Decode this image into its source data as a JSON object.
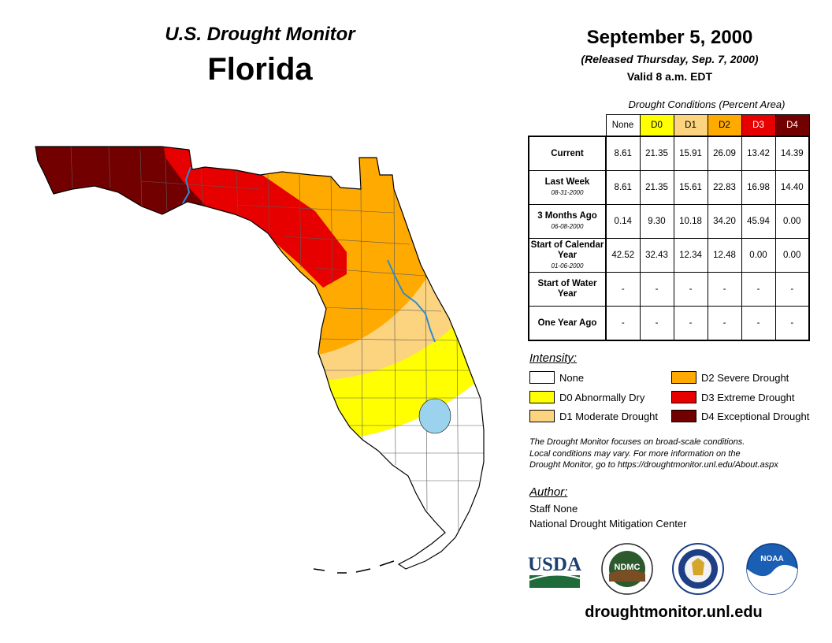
{
  "header": {
    "monitor_title": "U.S. Drought Monitor",
    "state": "Florida",
    "date": "September 5, 2000",
    "release_note": "(Released Thursday, Sep. 7, 2000)",
    "valid_time": "Valid 8 a.m. EDT"
  },
  "table": {
    "caption": "Drought Conditions (Percent Area)",
    "columns": [
      "None",
      "D0",
      "D1",
      "D2",
      "D3",
      "D4"
    ],
    "rows": [
      {
        "label": "Current",
        "date": "",
        "values": [
          "8.61",
          "21.35",
          "15.91",
          "26.09",
          "13.42",
          "14.39"
        ]
      },
      {
        "label": "Last Week",
        "date": "08-31-2000",
        "values": [
          "8.61",
          "21.35",
          "15.61",
          "22.83",
          "16.98",
          "14.40"
        ]
      },
      {
        "label": "3 Months Ago",
        "date": "06-08-2000",
        "values": [
          "0.14",
          "9.30",
          "10.18",
          "34.20",
          "45.94",
          "0.00"
        ]
      },
      {
        "label": "Start of Calendar Year",
        "date": "01-06-2000",
        "values": [
          "42.52",
          "32.43",
          "12.34",
          "12.48",
          "0.00",
          "0.00"
        ]
      },
      {
        "label": "Start of Water Year",
        "date": "",
        "values": [
          "-",
          "-",
          "-",
          "-",
          "-",
          "-"
        ]
      },
      {
        "label": "One Year Ago",
        "date": "",
        "values": [
          "-",
          "-",
          "-",
          "-",
          "-",
          "-"
        ]
      }
    ]
  },
  "legend": {
    "heading": "Intensity:",
    "items": [
      {
        "label": "None",
        "color": "#ffffff"
      },
      {
        "label": "D0 Abnormally Dry",
        "color": "#ffff00"
      },
      {
        "label": "D1 Moderate Drought",
        "color": "#fcd37f"
      },
      {
        "label": "D2 Severe Drought",
        "color": "#ffaa00"
      },
      {
        "label": "D3 Extreme Drought",
        "color": "#e60000"
      },
      {
        "label": "D4 Exceptional Drought",
        "color": "#730000"
      }
    ]
  },
  "disclaimer": [
    "The Drought Monitor focuses on broad-scale conditions.",
    "Local conditions may vary. For more information on the",
    "Drought Monitor, go to https://droughtmonitor.unl.edu/About.aspx"
  ],
  "author": {
    "heading": "Author:",
    "name": "Staff None",
    "org": "National Drought Mitigation Center"
  },
  "logos": {
    "usda": "USDA",
    "ndmc": "NDMC",
    "noaa": "NOAA"
  },
  "footer": {
    "url": "droughtmonitor.unl.edu"
  },
  "colors": {
    "water": "#9bd3ee",
    "river": "#2e8bd1"
  }
}
